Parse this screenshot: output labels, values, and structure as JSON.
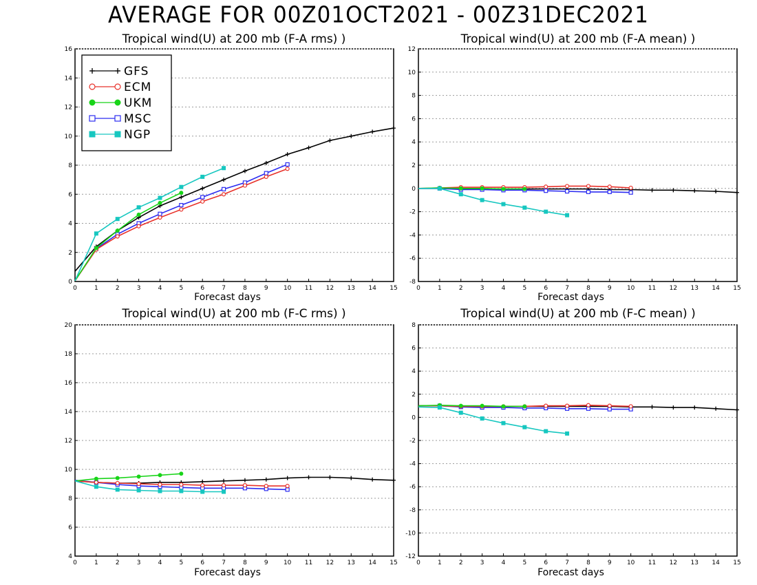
{
  "title": "AVERAGE FOR 00Z01OCT2021 - 00Z31DEC2021",
  "colors": {
    "GFS": "#000000",
    "ECM": "#e8312a",
    "UKM": "#18d418",
    "MSC": "#2b2bf0",
    "NGP": "#17c7c0"
  },
  "markers": {
    "GFS": "plus",
    "ECM": "open-circle",
    "UKM": "filled-circle",
    "MSC": "open-square",
    "NGP": "filled-square"
  },
  "chart_data": [
    {
      "type": "line",
      "title": "Tropical wind(U) at 200 mb (F-A rms) )",
      "xlabel": "Forecast days",
      "ylabel": "",
      "xlim": [
        0,
        15
      ],
      "ylim": [
        0,
        16
      ],
      "yticks": [
        0,
        2,
        4,
        6,
        8,
        10,
        12,
        14,
        16
      ],
      "xticks": [
        0,
        1,
        2,
        3,
        4,
        5,
        6,
        7,
        8,
        9,
        10,
        11,
        12,
        13,
        14,
        15
      ],
      "grid": "horizontal-dotted",
      "legend": "top-left",
      "series": [
        {
          "name": "GFS",
          "x": [
            0,
            1,
            2,
            3,
            4,
            5,
            6,
            7,
            8,
            9,
            10,
            11,
            12,
            13,
            14,
            15
          ],
          "values": [
            0.7,
            2.4,
            3.5,
            4.4,
            5.2,
            5.8,
            6.4,
            7.0,
            7.6,
            8.15,
            8.75,
            9.2,
            9.7,
            10.0,
            10.3,
            10.55
          ]
        },
        {
          "name": "ECM",
          "x": [
            0,
            1,
            2,
            3,
            4,
            5,
            6,
            7,
            8,
            9,
            10
          ],
          "values": [
            0.05,
            2.2,
            3.1,
            3.8,
            4.4,
            4.95,
            5.5,
            6.0,
            6.6,
            7.2,
            7.75
          ]
        },
        {
          "name": "UKM",
          "x": [
            0,
            1,
            2,
            3,
            4,
            5
          ],
          "values": [
            0.05,
            2.3,
            3.5,
            4.6,
            5.4,
            6.1
          ]
        },
        {
          "name": "MSC",
          "x": [
            0,
            1,
            2,
            3,
            4,
            5,
            6,
            7,
            8,
            9,
            10
          ],
          "values": [
            0.05,
            2.25,
            3.25,
            4.0,
            4.65,
            5.25,
            5.8,
            6.35,
            6.8,
            7.45,
            8.05
          ]
        },
        {
          "name": "NGP",
          "x": [
            0,
            1,
            2,
            3,
            4,
            5,
            6,
            7
          ],
          "values": [
            0.05,
            3.3,
            4.3,
            5.1,
            5.75,
            6.5,
            7.2,
            7.8
          ]
        }
      ]
    },
    {
      "type": "line",
      "title": "Tropical wind(U) at 200 mb (F-A mean) )",
      "xlabel": "Forecast days",
      "ylabel": "",
      "xlim": [
        0,
        15
      ],
      "ylim": [
        -8,
        12
      ],
      "yticks": [
        -8,
        -6,
        -4,
        -2,
        0,
        2,
        4,
        6,
        8,
        10,
        12
      ],
      "xticks": [
        0,
        1,
        2,
        3,
        4,
        5,
        6,
        7,
        8,
        9,
        10,
        11,
        12,
        13,
        14,
        15
      ],
      "grid": "horizontal-dotted",
      "series": [
        {
          "name": "GFS",
          "x": [
            0,
            1,
            2,
            3,
            4,
            5,
            6,
            7,
            8,
            9,
            10,
            11,
            12,
            13,
            14,
            15
          ],
          "values": [
            0.0,
            0.0,
            -0.05,
            -0.05,
            -0.05,
            -0.05,
            -0.05,
            -0.05,
            -0.05,
            -0.1,
            -0.1,
            -0.15,
            -0.15,
            -0.2,
            -0.25,
            -0.35
          ]
        },
        {
          "name": "ECM",
          "x": [
            0,
            1,
            2,
            3,
            4,
            5,
            6,
            7,
            8,
            9,
            10
          ],
          "values": [
            0.0,
            0.05,
            0.1,
            0.1,
            0.1,
            0.1,
            0.15,
            0.2,
            0.2,
            0.15,
            0.05
          ]
        },
        {
          "name": "UKM",
          "x": [
            0,
            1,
            2,
            3,
            4,
            5
          ],
          "values": [
            0.0,
            0.05,
            0.0,
            0.0,
            -0.05,
            -0.05
          ]
        },
        {
          "name": "MSC",
          "x": [
            0,
            1,
            2,
            3,
            4,
            5,
            6,
            7,
            8,
            9,
            10
          ],
          "values": [
            0.0,
            0.0,
            -0.1,
            -0.1,
            -0.15,
            -0.15,
            -0.2,
            -0.25,
            -0.3,
            -0.3,
            -0.35
          ]
        },
        {
          "name": "NGP",
          "x": [
            0,
            1,
            2,
            3,
            4,
            5,
            6,
            7
          ],
          "values": [
            0.0,
            0.0,
            -0.5,
            -1.0,
            -1.35,
            -1.65,
            -2.0,
            -2.3
          ]
        }
      ]
    },
    {
      "type": "line",
      "title": "Tropical wind(U) at 200 mb (F-C rms) )",
      "xlabel": "Forecast days",
      "ylabel": "",
      "xlim": [
        0,
        15
      ],
      "ylim": [
        4,
        20
      ],
      "yticks": [
        4,
        6,
        8,
        10,
        12,
        14,
        16,
        18,
        20
      ],
      "xticks": [
        0,
        1,
        2,
        3,
        4,
        5,
        6,
        7,
        8,
        9,
        10,
        11,
        12,
        13,
        14,
        15
      ],
      "grid": "horizontal-dotted",
      "series": [
        {
          "name": "GFS",
          "x": [
            0,
            1,
            2,
            3,
            4,
            5,
            6,
            7,
            8,
            9,
            10,
            11,
            12,
            13,
            14,
            15
          ],
          "values": [
            9.2,
            9.1,
            9.05,
            9.05,
            9.1,
            9.1,
            9.15,
            9.2,
            9.25,
            9.3,
            9.4,
            9.45,
            9.45,
            9.4,
            9.3,
            9.25
          ]
        },
        {
          "name": "ECM",
          "x": [
            0,
            1,
            2,
            3,
            4,
            5,
            6,
            7,
            8,
            9,
            10
          ],
          "values": [
            9.2,
            9.1,
            9.05,
            9.0,
            8.95,
            8.95,
            8.9,
            8.9,
            8.9,
            8.85,
            8.85
          ]
        },
        {
          "name": "UKM",
          "x": [
            0,
            1,
            2,
            3,
            4,
            5
          ],
          "values": [
            9.2,
            9.35,
            9.4,
            9.5,
            9.6,
            9.7
          ]
        },
        {
          "name": "MSC",
          "x": [
            0,
            1,
            2,
            3,
            4,
            5,
            6,
            7,
            8,
            9,
            10
          ],
          "values": [
            9.25,
            9.1,
            8.95,
            8.85,
            8.8,
            8.75,
            8.7,
            8.7,
            8.7,
            8.65,
            8.6
          ]
        },
        {
          "name": "NGP",
          "x": [
            0,
            1,
            2,
            3,
            4,
            5,
            6,
            7
          ],
          "values": [
            9.2,
            8.8,
            8.6,
            8.55,
            8.5,
            8.5,
            8.45,
            8.45
          ]
        }
      ]
    },
    {
      "type": "line",
      "title": "Tropical wind(U) at 200 mb (F-C mean) )",
      "xlabel": "Forecast days",
      "ylabel": "",
      "xlim": [
        0,
        15
      ],
      "ylim": [
        -12,
        8
      ],
      "yticks": [
        -12,
        -10,
        -8,
        -6,
        -4,
        -2,
        0,
        2,
        4,
        6,
        8
      ],
      "xticks": [
        0,
        1,
        2,
        3,
        4,
        5,
        6,
        7,
        8,
        9,
        10,
        11,
        12,
        13,
        14,
        15
      ],
      "grid": "horizontal-dotted",
      "series": [
        {
          "name": "GFS",
          "x": [
            0,
            1,
            2,
            3,
            4,
            5,
            6,
            7,
            8,
            9,
            10,
            11,
            12,
            13,
            14,
            15
          ],
          "values": [
            1.0,
            1.0,
            0.95,
            0.95,
            0.95,
            0.95,
            0.95,
            0.95,
            0.95,
            0.95,
            0.9,
            0.9,
            0.85,
            0.85,
            0.75,
            0.65
          ]
        },
        {
          "name": "ECM",
          "x": [
            0,
            1,
            2,
            3,
            4,
            5,
            6,
            7,
            8,
            9,
            10
          ],
          "values": [
            1.0,
            1.0,
            0.95,
            0.95,
            0.95,
            0.95,
            1.0,
            1.0,
            1.05,
            1.0,
            0.95
          ]
        },
        {
          "name": "UKM",
          "x": [
            0,
            1,
            2,
            3,
            4,
            5
          ],
          "values": [
            1.0,
            1.05,
            1.0,
            1.0,
            0.95,
            0.95
          ]
        },
        {
          "name": "MSC",
          "x": [
            0,
            1,
            2,
            3,
            4,
            5,
            6,
            7,
            8,
            9,
            10
          ],
          "values": [
            1.0,
            1.0,
            0.9,
            0.85,
            0.85,
            0.8,
            0.8,
            0.75,
            0.75,
            0.7,
            0.7
          ]
        },
        {
          "name": "NGP",
          "x": [
            0,
            1,
            2,
            3,
            4,
            5,
            6,
            7
          ],
          "values": [
            0.9,
            0.85,
            0.4,
            -0.1,
            -0.5,
            -0.85,
            -1.2,
            -1.4
          ]
        }
      ]
    }
  ]
}
